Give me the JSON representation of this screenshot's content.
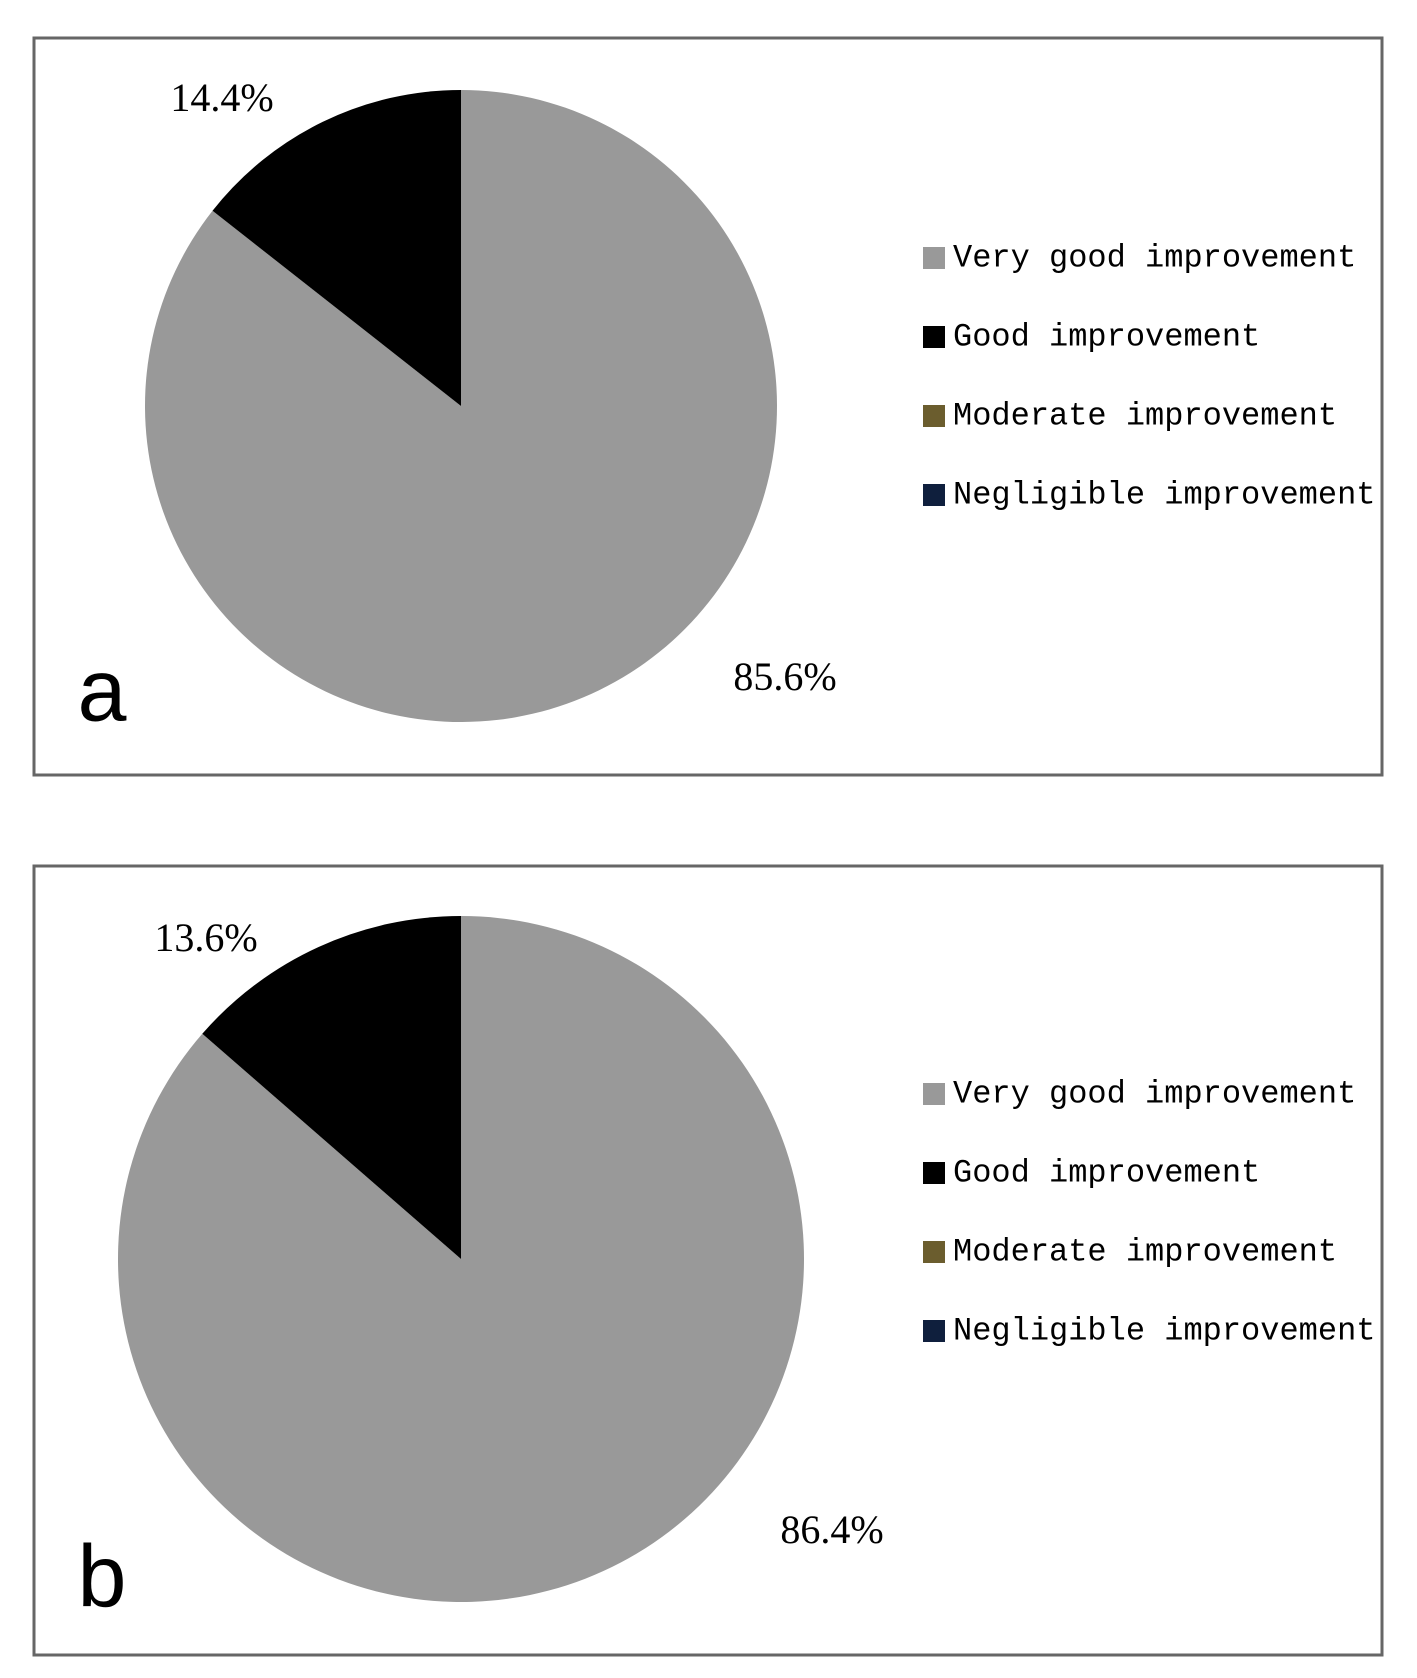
{
  "chart_data": [
    {
      "type": "pie",
      "label": "a",
      "categories": [
        "Very good improvement",
        "Good improvement",
        "Moderate improvement",
        "Negligible improvement"
      ],
      "values": [
        85.6,
        14.4,
        0,
        0
      ],
      "value_labels": [
        "85.6%",
        "14.4%",
        null,
        null
      ],
      "colors": [
        "#999999",
        "#000000",
        "#6b5d2e",
        "#0f1f3d"
      ]
    },
    {
      "type": "pie",
      "label": "b",
      "categories": [
        "Very good improvement",
        "Good improvement",
        "Moderate improvement",
        "Negligible improvement"
      ],
      "values": [
        86.4,
        13.6,
        0,
        0
      ],
      "value_labels": [
        "86.4%",
        "13.6%",
        null,
        null
      ],
      "colors": [
        "#999999",
        "#000000",
        "#6b5d2e",
        "#0f1f3d"
      ]
    }
  ]
}
